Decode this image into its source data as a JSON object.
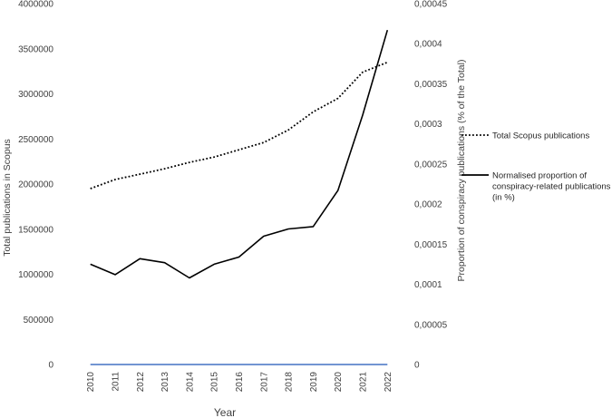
{
  "chart_data": {
    "type": "line",
    "x": [
      2010,
      2011,
      2012,
      2013,
      2014,
      2015,
      2016,
      2017,
      2018,
      2019,
      2020,
      2021,
      2022
    ],
    "xlabel": "Year",
    "ylabel": "Total publications in Scopus",
    "y2label": "Proportion of conspiracy publications (% of the Total)",
    "ylim": [
      0,
      4000000
    ],
    "y2lim": [
      0,
      0.00045
    ],
    "y_ticks": [
      "0",
      "500000",
      "1000000",
      "1500000",
      "2000000",
      "2500000",
      "3000000",
      "3500000",
      "4000000"
    ],
    "y2_ticks": [
      "0",
      "0,00005",
      "0,0001",
      "0,00015",
      "0,0002",
      "0,00025",
      "0,0003",
      "0,00035",
      "0,0004",
      "0,00045"
    ],
    "series": [
      {
        "name": "Total Scopus publications",
        "axis": "left",
        "style": "dotted",
        "color": "#000000",
        "values": [
          1950000,
          2050000,
          2110000,
          2170000,
          2240000,
          2300000,
          2380000,
          2460000,
          2600000,
          2800000,
          2950000,
          3240000,
          3350000
        ]
      },
      {
        "name": "Normalised proportion of conspiracy-related publications (in %)",
        "axis": "right",
        "style": "solid",
        "color": "#000000",
        "values": [
          0.000125,
          0.000112,
          0.000132,
          0.000127,
          0.000108,
          0.000125,
          0.000134,
          0.00016,
          0.000169,
          0.000172,
          0.000217,
          0.000311,
          0.000417
        ]
      },
      {
        "name": "",
        "axis": "left",
        "style": "solid",
        "color": "#4472c4",
        "values": [
          0,
          0,
          0,
          0,
          0,
          0,
          0,
          0,
          0,
          0,
          0,
          0,
          0
        ]
      }
    ],
    "legend": [
      {
        "label_lines": [
          "Total Scopus publications"
        ],
        "style": "dotted"
      },
      {
        "label_lines": [
          "Normalised proportion of",
          "conspiracy-related publications",
          "(in %)"
        ],
        "style": "solid"
      }
    ]
  }
}
